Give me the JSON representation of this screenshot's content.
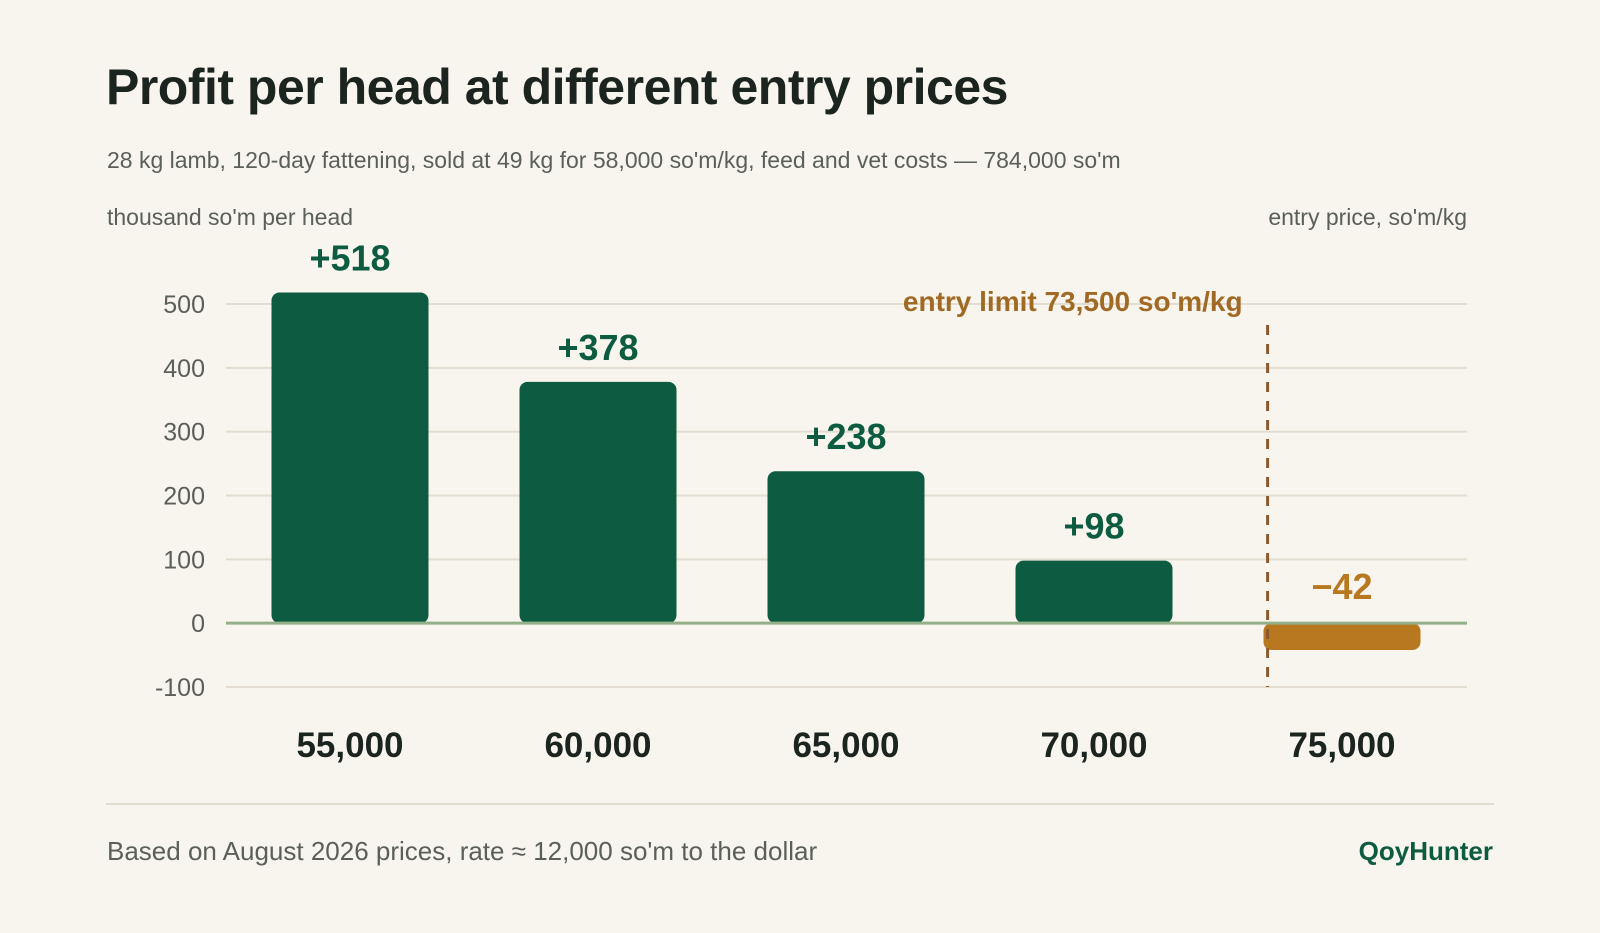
{
  "title": "Profit per head at different entry prices",
  "subtitle": "28 kg lamb, 120-day fattening, sold at 49 kg for 58,000 so'm/kg, feed and vet costs — 784,000 so'm",
  "footnote": "Based on August 2026 prices, rate ≈ 12,000 so'm to the dollar",
  "brand": "QoyHunter",
  "colors": {
    "positive": "#0d5c42",
    "negative": "#b8781f",
    "zero_line": "#93b08a",
    "grid": "#e3ddd1",
    "limit_line": "#8a5a2e",
    "limit_label": "#a06a24"
  },
  "chart_data": {
    "type": "bar",
    "categories": [
      "55,000",
      "60,000",
      "65,000",
      "70,000",
      "75,000"
    ],
    "values": [
      518,
      378,
      238,
      98,
      -42
    ],
    "value_labels": [
      "+518",
      "+378",
      "+238",
      "+98",
      "−42"
    ],
    "ylabel": "thousand so'm per head",
    "xlabel": "entry price, so'm/kg",
    "ylim": [
      -100,
      500
    ],
    "yticks": [
      500,
      400,
      300,
      200,
      100,
      0,
      -100
    ],
    "grid": true,
    "annotation": {
      "label": "entry limit 73,500 so'm/kg",
      "x_value": 73500
    }
  }
}
